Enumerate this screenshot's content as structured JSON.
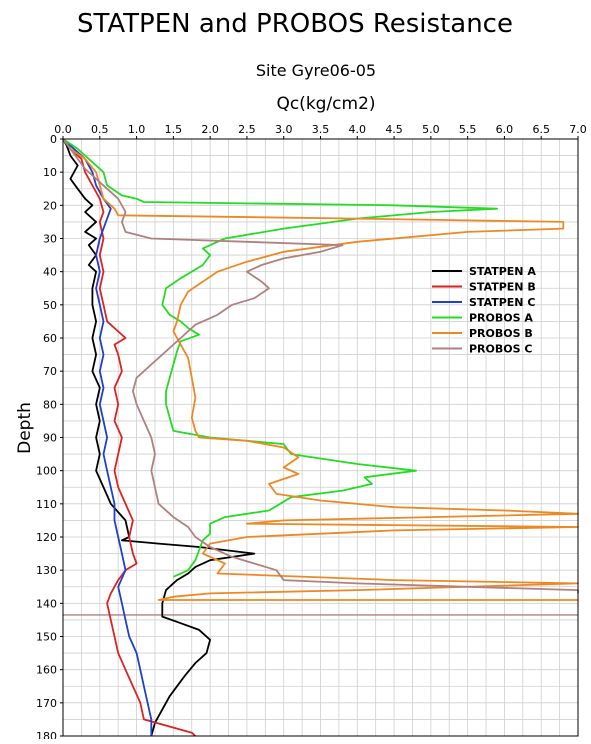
{
  "chart_data": {
    "type": "line",
    "title": "STATPEN and PROBOS Resistance",
    "subtitle": "Site Gyre06-05",
    "xlabel": "Qc(kg/cm2)",
    "ylabel": "Depth",
    "xlim": [
      0,
      7
    ],
    "ylim": [
      0,
      180
    ],
    "y_inverted": true,
    "x_axis_position": "top",
    "grid": true,
    "legend_position": "right",
    "x_ticks": [
      "0.0",
      "0.5",
      "1.0",
      "1.5",
      "2.0",
      "2.5",
      "3.0",
      "3.5",
      "4.0",
      "4.5",
      "5.0",
      "5.5",
      "6.0",
      "6.5",
      "7.0"
    ],
    "y_ticks": [
      "0",
      "10",
      "20",
      "30",
      "40",
      "50",
      "60",
      "70",
      "80",
      "90",
      "100",
      "110",
      "120",
      "130",
      "140",
      "150",
      "160",
      "170",
      "180"
    ],
    "reference_line": {
      "depth": 143.5,
      "color": "#b08080"
    },
    "series": [
      {
        "name": "STATPEN A",
        "color": "#000000",
        "points": [
          [
            0,
            0
          ],
          [
            0.05,
            2
          ],
          [
            0.1,
            5
          ],
          [
            0.2,
            8
          ],
          [
            0.15,
            10
          ],
          [
            0.1,
            12
          ],
          [
            0.2,
            15
          ],
          [
            0.3,
            18
          ],
          [
            0.4,
            20
          ],
          [
            0.3,
            22
          ],
          [
            0.45,
            25
          ],
          [
            0.3,
            28
          ],
          [
            0.45,
            30
          ],
          [
            0.35,
            32
          ],
          [
            0.45,
            35
          ],
          [
            0.35,
            38
          ],
          [
            0.45,
            40
          ],
          [
            0.4,
            45
          ],
          [
            0.4,
            50
          ],
          [
            0.45,
            55
          ],
          [
            0.4,
            60
          ],
          [
            0.45,
            65
          ],
          [
            0.4,
            70
          ],
          [
            0.5,
            75
          ],
          [
            0.45,
            80
          ],
          [
            0.5,
            85
          ],
          [
            0.45,
            90
          ],
          [
            0.5,
            95
          ],
          [
            0.45,
            100
          ],
          [
            0.55,
            105
          ],
          [
            0.65,
            110
          ],
          [
            0.85,
            115
          ],
          [
            0.9,
            120
          ],
          [
            0.8,
            121
          ],
          [
            1.3,
            122
          ],
          [
            1.85,
            123
          ],
          [
            2.6,
            125
          ],
          [
            2.0,
            127
          ],
          [
            1.8,
            129
          ],
          [
            1.7,
            131
          ],
          [
            1.55,
            133
          ],
          [
            1.4,
            136
          ],
          [
            1.35,
            140
          ],
          [
            1.35,
            144
          ],
          [
            1.6,
            146
          ],
          [
            1.85,
            148
          ],
          [
            2.0,
            151
          ],
          [
            1.95,
            155
          ],
          [
            1.8,
            158
          ],
          [
            1.65,
            162
          ],
          [
            1.55,
            165
          ],
          [
            1.45,
            168
          ],
          [
            1.35,
            172
          ],
          [
            1.25,
            176
          ],
          [
            1.2,
            180
          ]
        ]
      },
      {
        "name": "STATPEN B",
        "color": "#dd2222",
        "points": [
          [
            0,
            0
          ],
          [
            0.1,
            3
          ],
          [
            0.25,
            6
          ],
          [
            0.3,
            10
          ],
          [
            0.4,
            14
          ],
          [
            0.5,
            18
          ],
          [
            0.55,
            22
          ],
          [
            0.5,
            25
          ],
          [
            0.55,
            30
          ],
          [
            0.5,
            35
          ],
          [
            0.55,
            40
          ],
          [
            0.5,
            45
          ],
          [
            0.55,
            50
          ],
          [
            0.6,
            55
          ],
          [
            0.85,
            60
          ],
          [
            0.7,
            62
          ],
          [
            0.75,
            65
          ],
          [
            0.8,
            70
          ],
          [
            0.7,
            75
          ],
          [
            0.75,
            80
          ],
          [
            0.7,
            85
          ],
          [
            0.8,
            90
          ],
          [
            0.75,
            95
          ],
          [
            0.7,
            100
          ],
          [
            0.75,
            105
          ],
          [
            0.85,
            110
          ],
          [
            0.95,
            115
          ],
          [
            0.9,
            120
          ],
          [
            0.95,
            125
          ],
          [
            1.0,
            128
          ],
          [
            0.85,
            130
          ],
          [
            0.75,
            133
          ],
          [
            0.65,
            137
          ],
          [
            0.6,
            140
          ],
          [
            0.65,
            145
          ],
          [
            0.7,
            150
          ],
          [
            0.75,
            155
          ],
          [
            0.85,
            160
          ],
          [
            0.95,
            165
          ],
          [
            1.05,
            170
          ],
          [
            1.1,
            175
          ],
          [
            1.75,
            179
          ],
          [
            1.8,
            180
          ]
        ]
      },
      {
        "name": "STATPEN C",
        "color": "#1f3fcf",
        "points": [
          [
            0,
            0
          ],
          [
            0.15,
            3
          ],
          [
            0.3,
            6
          ],
          [
            0.4,
            10
          ],
          [
            0.45,
            14
          ],
          [
            0.55,
            18
          ],
          [
            0.65,
            21
          ],
          [
            0.6,
            24
          ],
          [
            0.55,
            27
          ],
          [
            0.5,
            30
          ],
          [
            0.45,
            35
          ],
          [
            0.5,
            40
          ],
          [
            0.45,
            45
          ],
          [
            0.5,
            50
          ],
          [
            0.55,
            55
          ],
          [
            0.5,
            60
          ],
          [
            0.55,
            65
          ],
          [
            0.5,
            70
          ],
          [
            0.55,
            75
          ],
          [
            0.5,
            80
          ],
          [
            0.55,
            85
          ],
          [
            0.6,
            90
          ],
          [
            0.55,
            95
          ],
          [
            0.6,
            100
          ],
          [
            0.65,
            105
          ],
          [
            0.7,
            110
          ],
          [
            0.7,
            115
          ],
          [
            0.75,
            120
          ],
          [
            0.8,
            125
          ],
          [
            0.85,
            130
          ],
          [
            0.75,
            135
          ],
          [
            0.8,
            140
          ],
          [
            0.85,
            145
          ],
          [
            0.9,
            150
          ],
          [
            1.0,
            155
          ],
          [
            1.05,
            160
          ],
          [
            1.1,
            165
          ],
          [
            1.15,
            170
          ],
          [
            1.2,
            175
          ],
          [
            1.2,
            180
          ]
        ]
      },
      {
        "name": "PROBOS A",
        "color": "#22dd22",
        "points": [
          [
            0,
            0
          ],
          [
            0.2,
            3
          ],
          [
            0.4,
            7
          ],
          [
            0.55,
            10
          ],
          [
            0.6,
            14
          ],
          [
            0.8,
            17
          ],
          [
            1.0,
            18
          ],
          [
            1.1,
            19
          ],
          [
            4.5,
            20
          ],
          [
            5.9,
            21
          ],
          [
            5.0,
            22
          ],
          [
            4.0,
            24
          ],
          [
            3.0,
            27
          ],
          [
            2.2,
            30
          ],
          [
            1.9,
            33
          ],
          [
            2.0,
            35
          ],
          [
            1.9,
            38
          ],
          [
            1.6,
            42
          ],
          [
            1.4,
            45
          ],
          [
            1.35,
            50
          ],
          [
            1.45,
            53
          ],
          [
            1.6,
            55
          ],
          [
            1.7,
            57
          ],
          [
            1.85,
            59
          ],
          [
            1.6,
            61
          ],
          [
            1.55,
            64
          ],
          [
            1.5,
            68
          ],
          [
            1.45,
            72
          ],
          [
            1.4,
            76
          ],
          [
            1.4,
            80
          ],
          [
            1.45,
            84
          ],
          [
            1.5,
            88
          ],
          [
            2.0,
            90
          ],
          [
            3.0,
            92
          ],
          [
            3.1,
            95
          ],
          [
            4.0,
            98
          ],
          [
            4.8,
            100
          ],
          [
            4.1,
            102
          ],
          [
            4.2,
            104
          ],
          [
            3.8,
            106
          ],
          [
            3.1,
            108
          ],
          [
            2.8,
            112
          ],
          [
            2.2,
            114
          ],
          [
            2.0,
            116
          ],
          [
            2.0,
            119
          ],
          [
            1.9,
            121
          ],
          [
            1.85,
            124
          ],
          [
            1.8,
            127
          ],
          [
            1.7,
            130
          ],
          [
            1.5,
            132
          ]
        ]
      },
      {
        "name": "PROBOS B",
        "color": "#ee8822",
        "points": [
          [
            0,
            0
          ],
          [
            0.1,
            3
          ],
          [
            0.3,
            6
          ],
          [
            0.45,
            10
          ],
          [
            0.5,
            14
          ],
          [
            0.55,
            18
          ],
          [
            0.7,
            21
          ],
          [
            0.75,
            23
          ],
          [
            4.0,
            24
          ],
          [
            6.8,
            25
          ],
          [
            6.8,
            27
          ],
          [
            5.5,
            28
          ],
          [
            4.0,
            31
          ],
          [
            3.0,
            34
          ],
          [
            2.5,
            37
          ],
          [
            2.1,
            40
          ],
          [
            1.9,
            43
          ],
          [
            1.7,
            46
          ],
          [
            1.6,
            50
          ],
          [
            1.55,
            55
          ],
          [
            1.5,
            58
          ],
          [
            1.6,
            62
          ],
          [
            1.7,
            66
          ],
          [
            1.75,
            72
          ],
          [
            1.8,
            78
          ],
          [
            1.75,
            84
          ],
          [
            1.8,
            88
          ],
          [
            1.85,
            90
          ],
          [
            2.5,
            91
          ],
          [
            3.0,
            93
          ],
          [
            3.2,
            96
          ],
          [
            3.0,
            99
          ],
          [
            3.2,
            101
          ],
          [
            2.8,
            104
          ],
          [
            2.9,
            107
          ],
          [
            3.5,
            109
          ],
          [
            4.5,
            111
          ],
          [
            6.0,
            112
          ],
          [
            7.0,
            113
          ],
          [
            5.0,
            114
          ],
          [
            3.0,
            115
          ],
          [
            2.5,
            116
          ],
          [
            7.0,
            117
          ],
          [
            4.5,
            118
          ],
          [
            2.5,
            120
          ],
          [
            2.0,
            122
          ],
          [
            1.9,
            125
          ],
          [
            2.2,
            128
          ],
          [
            2.1,
            131
          ],
          [
            4.5,
            133
          ],
          [
            7.0,
            134
          ],
          [
            4.0,
            136
          ],
          [
            2.0,
            137
          ],
          [
            1.5,
            138
          ],
          [
            1.3,
            139
          ],
          [
            7.0,
            139
          ]
        ]
      },
      {
        "name": "PROBOS C",
        "color": "#b08080",
        "points": [
          [
            0,
            0
          ],
          [
            0.1,
            3
          ],
          [
            0.2,
            6
          ],
          [
            0.3,
            9
          ],
          [
            0.45,
            12
          ],
          [
            0.6,
            15
          ],
          [
            0.75,
            18
          ],
          [
            0.85,
            22
          ],
          [
            0.8,
            25
          ],
          [
            0.85,
            28
          ],
          [
            1.2,
            30
          ],
          [
            2.5,
            31
          ],
          [
            3.8,
            32
          ],
          [
            3.5,
            34
          ],
          [
            3.0,
            36
          ],
          [
            2.7,
            38
          ],
          [
            2.5,
            40
          ],
          [
            2.7,
            43
          ],
          [
            2.8,
            45
          ],
          [
            2.6,
            48
          ],
          [
            2.3,
            50
          ],
          [
            2.1,
            53
          ],
          [
            1.8,
            56
          ],
          [
            1.6,
            60
          ],
          [
            1.4,
            64
          ],
          [
            1.2,
            68
          ],
          [
            1.0,
            72
          ],
          [
            0.95,
            76
          ],
          [
            1.0,
            80
          ],
          [
            1.1,
            85
          ],
          [
            1.2,
            90
          ],
          [
            1.25,
            95
          ],
          [
            1.2,
            100
          ],
          [
            1.25,
            105
          ],
          [
            1.3,
            110
          ],
          [
            1.5,
            114
          ],
          [
            1.7,
            117
          ],
          [
            1.8,
            120
          ],
          [
            2.0,
            123
          ],
          [
            2.3,
            126
          ],
          [
            2.6,
            128
          ],
          [
            2.9,
            130
          ],
          [
            3.0,
            133
          ],
          [
            4.0,
            134
          ],
          [
            5.5,
            135
          ],
          [
            7.0,
            136
          ],
          [
            7.0,
            137
          ]
        ]
      }
    ]
  }
}
